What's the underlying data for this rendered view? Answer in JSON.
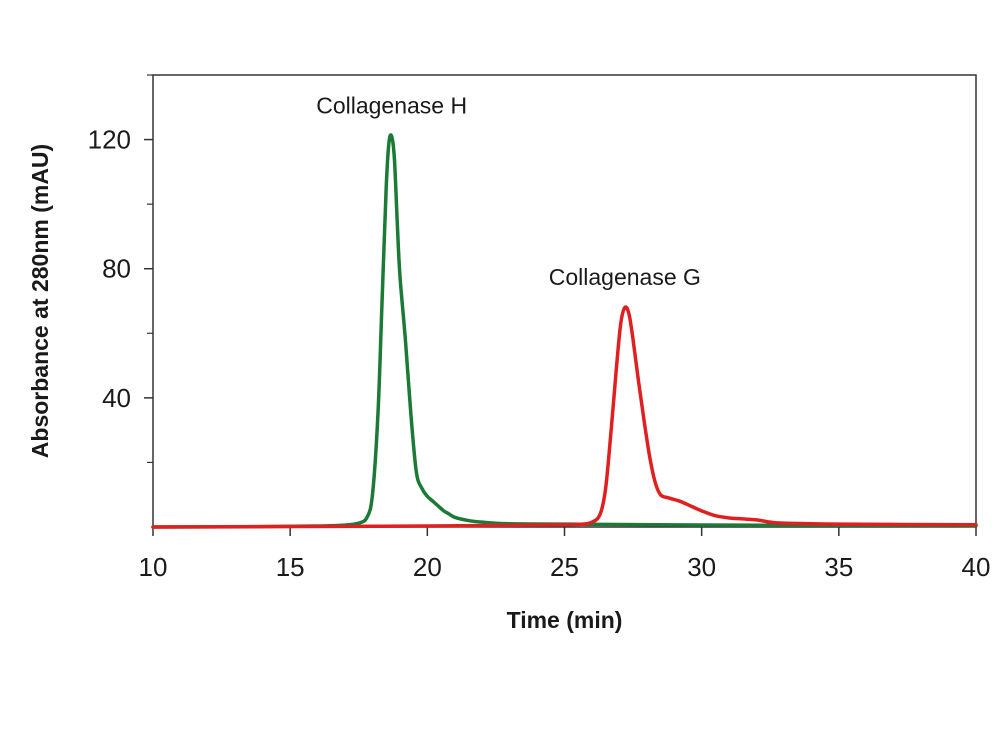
{
  "chart_data": {
    "type": "line",
    "title": "",
    "xlabel": "Time (min)",
    "ylabel": "Absorbance at 280nm (mAU)",
    "xlim": [
      10,
      40
    ],
    "ylim": [
      0,
      140
    ],
    "xticks": [
      10,
      15,
      20,
      25,
      30,
      35,
      40
    ],
    "yticks_labeled": [
      40,
      80,
      120
    ],
    "yticks_minor": [
      20,
      60,
      100,
      140
    ],
    "grid": false,
    "legend": "none",
    "annotations": [
      {
        "text": "Collagenase H",
        "x": 18.7,
        "y": 128,
        "series": "Collagenase H"
      },
      {
        "text": "Collagenase G",
        "x": 27.2,
        "y": 75,
        "series": "Collagenase G"
      }
    ],
    "series": [
      {
        "name": "Collagenase H",
        "color": "#1b7a35",
        "points": [
          [
            10,
            0
          ],
          [
            14,
            0.1
          ],
          [
            16,
            0.3
          ],
          [
            17,
            0.6
          ],
          [
            17.5,
            1.2
          ],
          [
            17.8,
            3
          ],
          [
            18.0,
            10
          ],
          [
            18.2,
            35
          ],
          [
            18.35,
            70
          ],
          [
            18.5,
            105
          ],
          [
            18.6,
            119
          ],
          [
            18.7,
            121
          ],
          [
            18.8,
            114
          ],
          [
            18.9,
            95
          ],
          [
            19.0,
            78
          ],
          [
            19.2,
            58
          ],
          [
            19.4,
            35
          ],
          [
            19.6,
            17
          ],
          [
            19.8,
            12
          ],
          [
            20.0,
            9.5
          ],
          [
            20.2,
            8
          ],
          [
            20.4,
            6.5
          ],
          [
            20.6,
            5
          ],
          [
            20.8,
            4
          ],
          [
            21.0,
            3
          ],
          [
            21.5,
            2
          ],
          [
            22,
            1.5
          ],
          [
            23,
            1.0
          ],
          [
            25,
            0.9
          ],
          [
            30,
            0.6
          ],
          [
            35,
            0.5
          ],
          [
            40,
            0.4
          ]
        ]
      },
      {
        "name": "Collagenase G",
        "color": "#e02020",
        "points": [
          [
            10,
            0
          ],
          [
            20,
            0.3
          ],
          [
            24,
            0.6
          ],
          [
            25.5,
            0.8
          ],
          [
            26.0,
            1.5
          ],
          [
            26.3,
            4
          ],
          [
            26.5,
            12
          ],
          [
            26.7,
            30
          ],
          [
            26.9,
            50
          ],
          [
            27.05,
            63
          ],
          [
            27.2,
            68
          ],
          [
            27.35,
            66
          ],
          [
            27.5,
            58
          ],
          [
            27.7,
            45
          ],
          [
            27.9,
            33
          ],
          [
            28.1,
            22
          ],
          [
            28.3,
            14
          ],
          [
            28.5,
            10
          ],
          [
            28.8,
            9
          ],
          [
            29.2,
            8
          ],
          [
            29.6,
            6.5
          ],
          [
            30,
            5
          ],
          [
            30.5,
            3.5
          ],
          [
            31,
            2.8
          ],
          [
            31.5,
            2.5
          ],
          [
            32,
            2.2
          ],
          [
            32.5,
            1.5
          ],
          [
            33,
            1.2
          ],
          [
            35,
            0.9
          ],
          [
            40,
            0.7
          ]
        ]
      }
    ]
  }
}
